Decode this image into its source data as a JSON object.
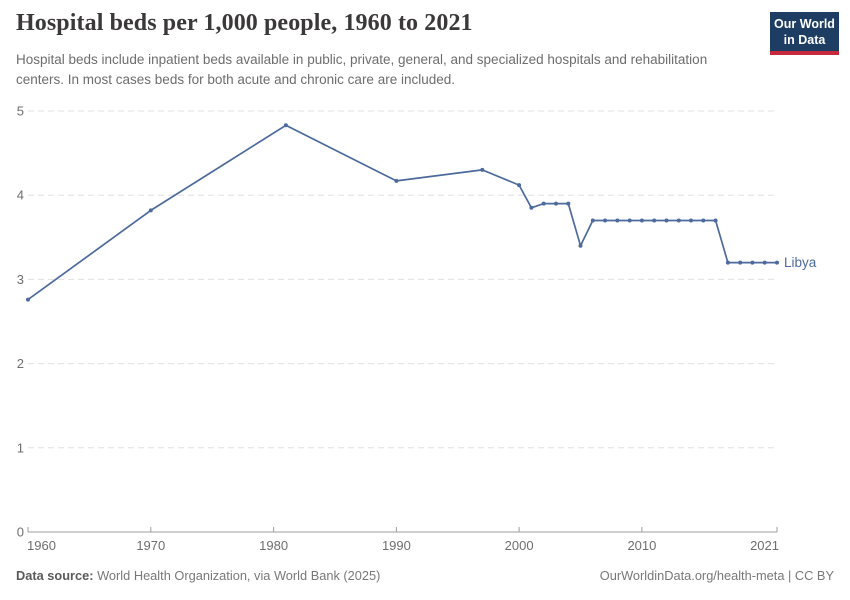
{
  "header": {
    "title": "Hospital beds per 1,000 people, 1960 to 2021",
    "subtitle": "Hospital beds include inpatient beds available in public, private, general, and specialized hospitals and rehabilitation centers. In most cases beds for both acute and chronic care are included.",
    "logo": {
      "line1": "Our World",
      "line2": "in Data",
      "bg_color": "#1d3d63",
      "accent_color": "#c5293b"
    }
  },
  "footer": {
    "source_label": "Data source:",
    "source_text": " World Health Organization, via World Bank (2025)",
    "right_text": "OurWorldinData.org/health-meta | CC BY"
  },
  "chart_data": {
    "type": "line",
    "title": "Hospital beds per 1,000 people, 1960 to 2021",
    "xlabel": "",
    "ylabel": "",
    "xlim": [
      1960,
      2021
    ],
    "ylim": [
      0,
      5
    ],
    "x_ticks": [
      1960,
      1970,
      1980,
      1990,
      2000,
      2010,
      2021
    ],
    "y_ticks": [
      0,
      1,
      2,
      3,
      4,
      5
    ],
    "grid": true,
    "legend_position": "end-of-line",
    "line_color": "#4c6a9c",
    "series": [
      {
        "name": "Libya",
        "points": [
          [
            1960,
            2.76
          ],
          [
            1970,
            3.82
          ],
          [
            1981,
            4.83
          ],
          [
            1990,
            4.17
          ],
          [
            1997,
            4.3
          ],
          [
            2000,
            4.12
          ],
          [
            2001,
            3.85
          ],
          [
            2002,
            3.9
          ],
          [
            2003,
            3.9
          ],
          [
            2004,
            3.9
          ],
          [
            2005,
            3.4
          ],
          [
            2006,
            3.7
          ],
          [
            2007,
            3.7
          ],
          [
            2008,
            3.7
          ],
          [
            2009,
            3.7
          ],
          [
            2010,
            3.7
          ],
          [
            2011,
            3.7
          ],
          [
            2012,
            3.7
          ],
          [
            2013,
            3.7
          ],
          [
            2014,
            3.7
          ],
          [
            2015,
            3.7
          ],
          [
            2016,
            3.7
          ],
          [
            2017,
            3.2
          ],
          [
            2018,
            3.2
          ],
          [
            2019,
            3.2
          ],
          [
            2020,
            3.2
          ],
          [
            2021,
            3.2
          ]
        ]
      }
    ]
  }
}
